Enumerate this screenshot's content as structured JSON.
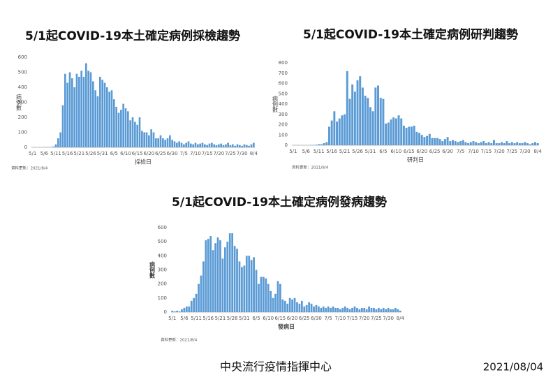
{
  "chart_data": [
    {
      "type": "bar",
      "title": "5/1起COVID-19本土確定病例採檢趨勢",
      "y_label": "病例數",
      "x_label": "採檢日",
      "source": "資料更新：2021/8/4",
      "color": "#5b9bd5",
      "ylim": [
        0,
        600
      ],
      "yticks": [
        0,
        100,
        200,
        300,
        400,
        500,
        600
      ],
      "categories": [
        "5/1",
        null,
        null,
        null,
        null,
        "5/6",
        null,
        null,
        null,
        null,
        "5/11",
        null,
        null,
        null,
        null,
        "5/16",
        null,
        null,
        null,
        null,
        "5/21",
        null,
        null,
        null,
        null,
        "5/26",
        null,
        null,
        null,
        null,
        "5/31",
        null,
        null,
        null,
        null,
        "6/5",
        null,
        null,
        null,
        null,
        "6/10",
        null,
        null,
        null,
        null,
        "6/15",
        null,
        null,
        null,
        null,
        "6/20",
        null,
        null,
        null,
        null,
        "6/25",
        null,
        null,
        null,
        null,
        "6/30",
        null,
        null,
        null,
        null,
        "7/5",
        null,
        null,
        null,
        null,
        "7/10",
        null,
        null,
        null,
        null,
        "7/15",
        null,
        null,
        null,
        null,
        "7/20",
        null,
        null,
        null,
        null,
        "7/25",
        null,
        null,
        null,
        null,
        "7/30",
        null,
        null,
        null,
        null,
        "8/4"
      ],
      "values": [
        0,
        1,
        0,
        1,
        0,
        1,
        2,
        1,
        2,
        5,
        20,
        60,
        100,
        280,
        490,
        430,
        500,
        460,
        400,
        490,
        470,
        510,
        470,
        560,
        510,
        500,
        440,
        380,
        340,
        470,
        450,
        430,
        400,
        370,
        380,
        320,
        270,
        230,
        250,
        290,
        260,
        240,
        180,
        200,
        170,
        150,
        200,
        110,
        100,
        100,
        80,
        120,
        100,
        60,
        60,
        80,
        60,
        50,
        60,
        80,
        50,
        40,
        30,
        40,
        30,
        20,
        30,
        40,
        25,
        20,
        30,
        20,
        25,
        30,
        20,
        15,
        25,
        30,
        20,
        15,
        20,
        25,
        15,
        20,
        30,
        15,
        20,
        10,
        20,
        15,
        10,
        20,
        15,
        10,
        20,
        30
      ]
    },
    {
      "type": "bar",
      "title": "5/1起COVID-19本土確定病例研判趨勢",
      "y_label": "病例數",
      "x_label": "研判日",
      "source": "資料更新：2021/8/4",
      "color": "#5b9bd5",
      "ylim": [
        0,
        800
      ],
      "yticks": [
        0,
        100,
        200,
        300,
        400,
        500,
        600,
        700,
        800
      ],
      "categories": [
        "5/1",
        null,
        null,
        null,
        null,
        "5/6",
        null,
        null,
        null,
        null,
        "5/11",
        null,
        null,
        null,
        null,
        "5/16",
        null,
        null,
        null,
        null,
        "5/21",
        null,
        null,
        null,
        null,
        "5/26",
        null,
        null,
        null,
        null,
        "5/31",
        null,
        null,
        null,
        null,
        "6/5",
        null,
        null,
        null,
        null,
        "6/10",
        null,
        null,
        null,
        null,
        "6/15",
        null,
        null,
        null,
        null,
        "6/20",
        null,
        null,
        null,
        null,
        "6/25",
        null,
        null,
        null,
        null,
        "6/30",
        null,
        null,
        null,
        null,
        "7/5",
        null,
        null,
        null,
        null,
        "7/10",
        null,
        null,
        null,
        null,
        "7/15",
        null,
        null,
        null,
        null,
        "7/20",
        null,
        null,
        null,
        null,
        "7/25",
        null,
        null,
        null,
        null,
        "7/30",
        null,
        null,
        null,
        null,
        "8/4"
      ],
      "values": [
        0,
        0,
        1,
        0,
        1,
        0,
        1,
        2,
        2,
        5,
        10,
        10,
        20,
        30,
        180,
        240,
        330,
        230,
        260,
        290,
        300,
        720,
        450,
        590,
        520,
        630,
        670,
        560,
        480,
        460,
        370,
        330,
        560,
        580,
        460,
        450,
        210,
        220,
        250,
        270,
        260,
        290,
        260,
        190,
        170,
        180,
        180,
        190,
        130,
        120,
        100,
        80,
        90,
        110,
        70,
        70,
        70,
        60,
        40,
        60,
        80,
        40,
        50,
        40,
        30,
        40,
        50,
        30,
        20,
        30,
        40,
        30,
        20,
        30,
        40,
        20,
        30,
        20,
        50,
        20,
        20,
        30,
        20,
        40,
        20,
        30,
        20,
        30,
        20,
        20,
        30,
        20,
        10,
        20,
        30,
        20
      ]
    },
    {
      "type": "bar",
      "title": "5/1起COVID-19本土確定病例發病趨勢",
      "y_label": "病例數",
      "x_label": "發病日",
      "source": "資料更新：2021/8/4",
      "color": "#5b9bd5",
      "ylim": [
        0,
        600
      ],
      "yticks": [
        0,
        100,
        200,
        300,
        400,
        500,
        600
      ],
      "categories": [
        "5/1",
        null,
        null,
        null,
        null,
        "5/6",
        null,
        null,
        null,
        null,
        "5/11",
        null,
        null,
        null,
        null,
        "5/16",
        null,
        null,
        null,
        null,
        "5/21",
        null,
        null,
        null,
        null,
        "5/26",
        null,
        null,
        null,
        null,
        "5/31",
        null,
        null,
        null,
        null,
        "6/5",
        null,
        null,
        null,
        null,
        "6/10",
        null,
        null,
        null,
        null,
        "6/15",
        null,
        null,
        null,
        null,
        "6/20",
        null,
        null,
        null,
        null,
        "6/25",
        null,
        null,
        null,
        null,
        "6/30",
        null,
        null,
        null,
        null,
        "7/5",
        null,
        null,
        null,
        null,
        "7/10",
        null,
        null,
        null,
        null,
        "7/15",
        null,
        null,
        null,
        null,
        "7/20",
        null,
        null,
        null,
        null,
        "7/25",
        null,
        null,
        null,
        null,
        "7/30",
        null,
        null,
        null,
        null,
        "8/4"
      ],
      "values": [
        10,
        5,
        10,
        5,
        20,
        30,
        40,
        40,
        80,
        100,
        130,
        200,
        260,
        360,
        510,
        520,
        540,
        440,
        490,
        530,
        510,
        380,
        460,
        500,
        560,
        560,
        470,
        450,
        360,
        320,
        330,
        400,
        400,
        370,
        390,
        300,
        200,
        250,
        250,
        240,
        200,
        150,
        100,
        130,
        220,
        200,
        90,
        80,
        60,
        100,
        90,
        100,
        70,
        60,
        80,
        40,
        50,
        70,
        60,
        40,
        50,
        40,
        30,
        40,
        30,
        40,
        30,
        40,
        30,
        30,
        20,
        30,
        40,
        30,
        20,
        30,
        40,
        30,
        20,
        30,
        30,
        20,
        40,
        30,
        30,
        20,
        30,
        20,
        30,
        20,
        30,
        20,
        20,
        30,
        20,
        10
      ]
    }
  ],
  "footer": {
    "organization": "中央流行疫情指揮中心",
    "date": "2021/08/04"
  }
}
